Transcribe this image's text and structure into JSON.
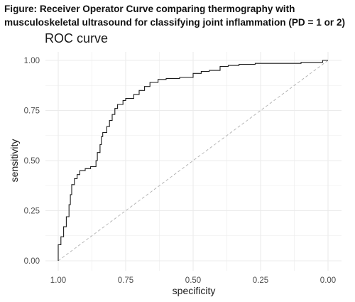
{
  "figure": {
    "caption_line1": "Figure: Receiver Operator Curve comparing thermography with",
    "caption_line2": "musculoskeletal ultrasound for classifying joint inflammation (PD = 1 or 2)"
  },
  "chart_data": {
    "type": "line",
    "title": "ROC curve",
    "xlabel": "specificity",
    "ylabel": "sensitivity",
    "xlim": [
      1.0,
      0.0
    ],
    "ylim": [
      0.0,
      1.0
    ],
    "x_reversed": true,
    "grid": true,
    "x_ticks": [
      1.0,
      0.75,
      0.5,
      0.25,
      0.0
    ],
    "x_tick_labels": [
      "1.00",
      "0.75",
      "0.50",
      "0.25",
      "0.00"
    ],
    "y_ticks": [
      0.0,
      0.25,
      0.5,
      0.75,
      1.0
    ],
    "y_tick_labels": [
      "0.00",
      "0.25",
      "0.50",
      "0.75",
      "1.00"
    ],
    "colors": {
      "curve": "#1a1a1a",
      "reference": "#b0b0b0",
      "grid": "#ebebeb"
    },
    "series": [
      {
        "values_xy": [
          [
            1.0,
            0.0
          ],
          [
            1.0,
            0.03
          ],
          [
            0.99,
            0.08
          ],
          [
            0.98,
            0.12
          ],
          [
            0.97,
            0.17
          ],
          [
            0.96,
            0.22
          ],
          [
            0.955,
            0.28
          ],
          [
            0.95,
            0.33
          ],
          [
            0.94,
            0.38
          ],
          [
            0.93,
            0.41
          ],
          [
            0.92,
            0.43
          ],
          [
            0.9,
            0.45
          ],
          [
            0.88,
            0.46
          ],
          [
            0.86,
            0.47
          ],
          [
            0.855,
            0.5
          ],
          [
            0.845,
            0.54
          ],
          [
            0.84,
            0.58
          ],
          [
            0.835,
            0.62
          ],
          [
            0.82,
            0.64
          ],
          [
            0.81,
            0.67
          ],
          [
            0.8,
            0.7
          ],
          [
            0.79,
            0.73
          ],
          [
            0.78,
            0.76
          ],
          [
            0.76,
            0.78
          ],
          [
            0.75,
            0.8
          ],
          [
            0.72,
            0.81
          ],
          [
            0.7,
            0.83
          ],
          [
            0.68,
            0.85
          ],
          [
            0.66,
            0.87
          ],
          [
            0.63,
            0.89
          ],
          [
            0.6,
            0.905
          ],
          [
            0.55,
            0.91
          ],
          [
            0.5,
            0.915
          ],
          [
            0.47,
            0.935
          ],
          [
            0.44,
            0.945
          ],
          [
            0.4,
            0.95
          ],
          [
            0.37,
            0.97
          ],
          [
            0.33,
            0.975
          ],
          [
            0.27,
            0.98
          ],
          [
            0.2,
            0.985
          ],
          [
            0.1,
            0.985
          ],
          [
            0.02,
            0.99
          ],
          [
            0.01,
            1.0
          ],
          [
            0.0,
            1.0
          ]
        ]
      },
      {
        "values_xy": [
          [
            1.0,
            0.0
          ],
          [
            0.0,
            1.0
          ]
        ],
        "style": "dashed"
      }
    ]
  }
}
